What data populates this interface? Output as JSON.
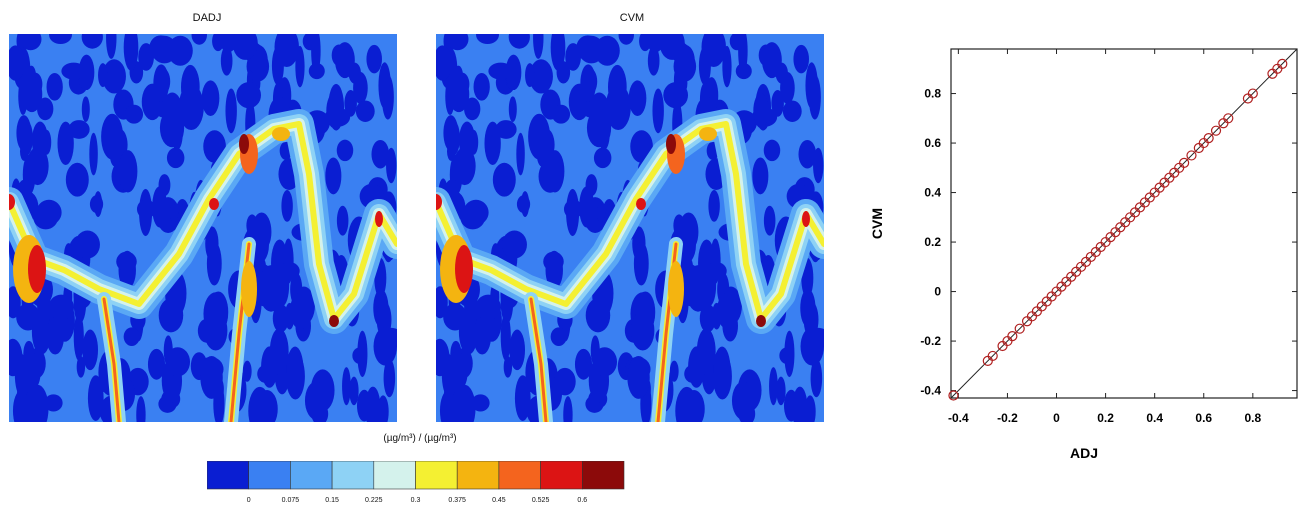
{
  "panels": [
    {
      "title": "DADJ"
    },
    {
      "title": "CVM"
    }
  ],
  "colorbar": {
    "unit_label": "(µg/m³) / (µg/m³)",
    "ticks": [
      "0",
      "0.075",
      "0.15",
      "0.225",
      "0.3",
      "0.375",
      "0.45",
      "0.525",
      "0.6"
    ],
    "colors": [
      "#0a1ed2",
      "#3a80f2",
      "#5aa8f5",
      "#8ed2f5",
      "#d4f2ec",
      "#f4f032",
      "#f4b410",
      "#f4641e",
      "#dc1414",
      "#8c0a0a"
    ]
  },
  "chart_data": [
    {
      "type": "heatmap",
      "title": "DADJ",
      "colorscale": [
        "#0a1ed2",
        "#3a80f2",
        "#5aa8f5",
        "#8ed2f5",
        "#d4f2ec",
        "#f4f032",
        "#f4b410",
        "#f4641e",
        "#dc1414",
        "#8c0a0a"
      ],
      "levels": [
        0,
        0.075,
        0.15,
        0.225,
        0.3,
        0.375,
        0.45,
        0.525,
        0.6
      ]
    },
    {
      "type": "heatmap",
      "title": "CVM",
      "colorscale": [
        "#0a1ed2",
        "#3a80f2",
        "#5aa8f5",
        "#8ed2f5",
        "#d4f2ec",
        "#f4f032",
        "#f4b410",
        "#f4641e",
        "#dc1414",
        "#8c0a0a"
      ],
      "levels": [
        0,
        0.075,
        0.15,
        0.225,
        0.3,
        0.375,
        0.45,
        0.525,
        0.6
      ]
    },
    {
      "type": "scatter",
      "xlabel": "ADJ",
      "ylabel": "CVM",
      "xlim": [
        -0.43,
        0.98
      ],
      "ylim": [
        -0.43,
        0.98
      ],
      "xticks": [
        "-0.4",
        "-0.2",
        "0",
        "0.2",
        "0.4",
        "0.6",
        "0.8"
      ],
      "yticks": [
        "-0.4",
        "-0.2",
        "0",
        "0.2",
        "0.4",
        "0.6",
        "0.8"
      ],
      "identity_line": true,
      "marker_color": "#b02020",
      "x": [
        -0.42,
        -0.28,
        -0.26,
        -0.22,
        -0.2,
        -0.18,
        -0.15,
        -0.12,
        -0.1,
        -0.08,
        -0.06,
        -0.04,
        -0.02,
        0,
        0.02,
        0.04,
        0.06,
        0.08,
        0.1,
        0.12,
        0.14,
        0.16,
        0.18,
        0.2,
        0.22,
        0.24,
        0.26,
        0.28,
        0.3,
        0.32,
        0.34,
        0.36,
        0.38,
        0.4,
        0.42,
        0.44,
        0.46,
        0.48,
        0.5,
        0.52,
        0.55,
        0.58,
        0.6,
        0.62,
        0.65,
        0.68,
        0.7,
        0.78,
        0.8,
        0.88,
        0.9,
        0.92
      ],
      "y": [
        -0.42,
        -0.28,
        -0.26,
        -0.22,
        -0.2,
        -0.18,
        -0.15,
        -0.12,
        -0.1,
        -0.08,
        -0.06,
        -0.04,
        -0.02,
        0,
        0.02,
        0.04,
        0.06,
        0.08,
        0.1,
        0.12,
        0.14,
        0.16,
        0.18,
        0.2,
        0.22,
        0.24,
        0.26,
        0.28,
        0.3,
        0.32,
        0.34,
        0.36,
        0.38,
        0.4,
        0.42,
        0.44,
        0.46,
        0.48,
        0.5,
        0.52,
        0.55,
        0.58,
        0.6,
        0.62,
        0.65,
        0.68,
        0.7,
        0.78,
        0.8,
        0.88,
        0.9,
        0.92
      ]
    }
  ]
}
